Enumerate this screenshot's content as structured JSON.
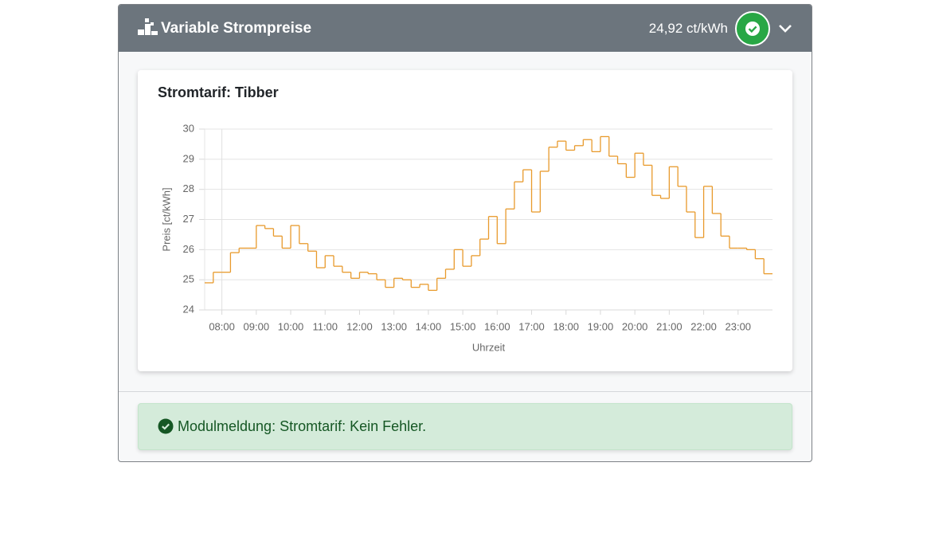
{
  "header": {
    "title": "Variable Strompreise",
    "price": "24,92 ct/kWh"
  },
  "chart_data": {
    "type": "line",
    "step": "post",
    "title": "Stromtarif: Tibber",
    "x_label": "Uhrzeit",
    "y_label": "Preis [ct/kWh]",
    "color": "#e89a2c",
    "grid": true,
    "x": [
      7.5,
      7.75,
      8,
      8.25,
      8.5,
      8.75,
      9,
      9.25,
      9.5,
      9.75,
      10,
      10.25,
      10.5,
      10.75,
      11,
      11.25,
      11.5,
      11.75,
      12,
      12.25,
      12.5,
      12.75,
      13,
      13.25,
      13.5,
      13.75,
      14,
      14.25,
      14.5,
      14.75,
      15,
      15.25,
      15.5,
      15.75,
      16,
      16.25,
      16.5,
      16.75,
      17,
      17.25,
      17.5,
      17.75,
      18,
      18.25,
      18.5,
      18.75,
      19,
      19.25,
      19.5,
      19.75,
      20,
      20.25,
      20.5,
      20.75,
      21,
      21.25,
      21.5,
      21.75,
      22,
      22.25,
      22.5,
      22.75,
      23,
      23.25,
      23.5,
      23.75
    ],
    "values": [
      24.9,
      25.25,
      25.25,
      25.9,
      26.05,
      26.05,
      26.8,
      26.7,
      26.45,
      26.05,
      26.8,
      26.2,
      25.95,
      25.4,
      25.8,
      25.45,
      25.25,
      25.05,
      25.25,
      25.2,
      25.0,
      24.75,
      25.05,
      25.0,
      24.75,
      24.85,
      24.65,
      25.05,
      25.35,
      26.0,
      25.45,
      25.8,
      26.35,
      27.1,
      26.2,
      27.35,
      28.25,
      28.65,
      27.25,
      28.6,
      29.4,
      29.6,
      29.3,
      29.45,
      29.65,
      29.25,
      29.75,
      29.1,
      28.85,
      28.4,
      29.2,
      28.8,
      27.8,
      27.7,
      28.75,
      28.1,
      27.25,
      26.4,
      28.1,
      27.2,
      26.45,
      26.05,
      26.05,
      26.0,
      25.7,
      25.2
    ],
    "xlim": [
      7.5,
      24
    ],
    "ylim": [
      24,
      30
    ],
    "xticks": [
      {
        "value": 8,
        "label": "08:00"
      },
      {
        "value": 9,
        "label": "09:00"
      },
      {
        "value": 10,
        "label": "10:00"
      },
      {
        "value": 11,
        "label": "11:00"
      },
      {
        "value": 12,
        "label": "12:00"
      },
      {
        "value": 13,
        "label": "13:00"
      },
      {
        "value": 14,
        "label": "14:00"
      },
      {
        "value": 15,
        "label": "15:00"
      },
      {
        "value": 16,
        "label": "16:00"
      },
      {
        "value": 17,
        "label": "17:00"
      },
      {
        "value": 18,
        "label": "18:00"
      },
      {
        "value": 19,
        "label": "19:00"
      },
      {
        "value": 20,
        "label": "20:00"
      },
      {
        "value": 21,
        "label": "21:00"
      },
      {
        "value": 22,
        "label": "22:00"
      },
      {
        "value": 23,
        "label": "23:00"
      }
    ],
    "yticks": [
      24,
      25,
      26,
      27,
      28,
      29,
      30
    ]
  },
  "message": {
    "text": "Modulmeldung: Stromtarif: Kein Fehler."
  }
}
